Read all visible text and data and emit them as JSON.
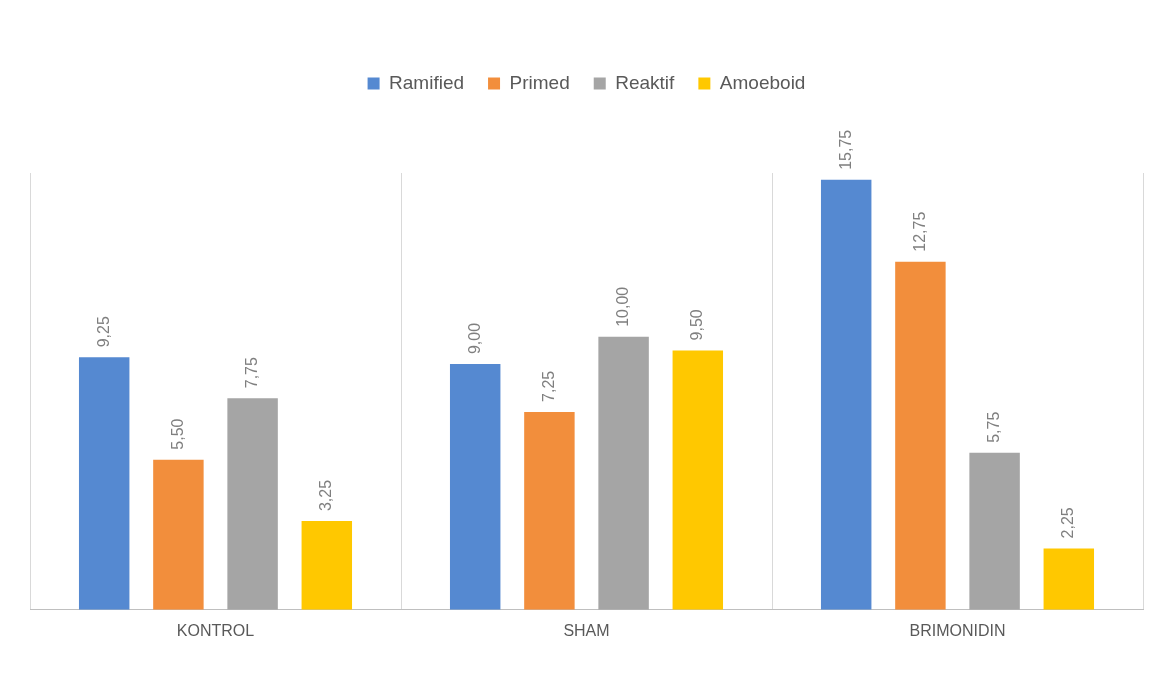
{
  "chart_data": {
    "type": "bar",
    "categories": [
      "KONTROL",
      "SHAM",
      "BRIMONIDIN"
    ],
    "series": [
      {
        "name": "Ramified",
        "color": "#5589d1",
        "values": [
          9.25,
          9.0,
          15.75
        ],
        "value_labels": [
          "9,25",
          "9,00",
          "15,75"
        ]
      },
      {
        "name": "Primed",
        "color": "#f28e3c",
        "values": [
          5.5,
          7.25,
          12.75
        ],
        "value_labels": [
          "5,50",
          "7,25",
          "12,75"
        ]
      },
      {
        "name": "Reaktif",
        "color": "#a5a5a5",
        "values": [
          7.75,
          10.0,
          5.75
        ],
        "value_labels": [
          "7,75",
          "10,00",
          "5,75"
        ]
      },
      {
        "name": "Amoeboid",
        "color": "#ffc800",
        "values": [
          3.25,
          9.5,
          2.25
        ],
        "value_labels": [
          "3,25",
          "9,50",
          "2,25"
        ]
      }
    ],
    "legend": "top",
    "grid": "x",
    "tick_labels": "x"
  }
}
